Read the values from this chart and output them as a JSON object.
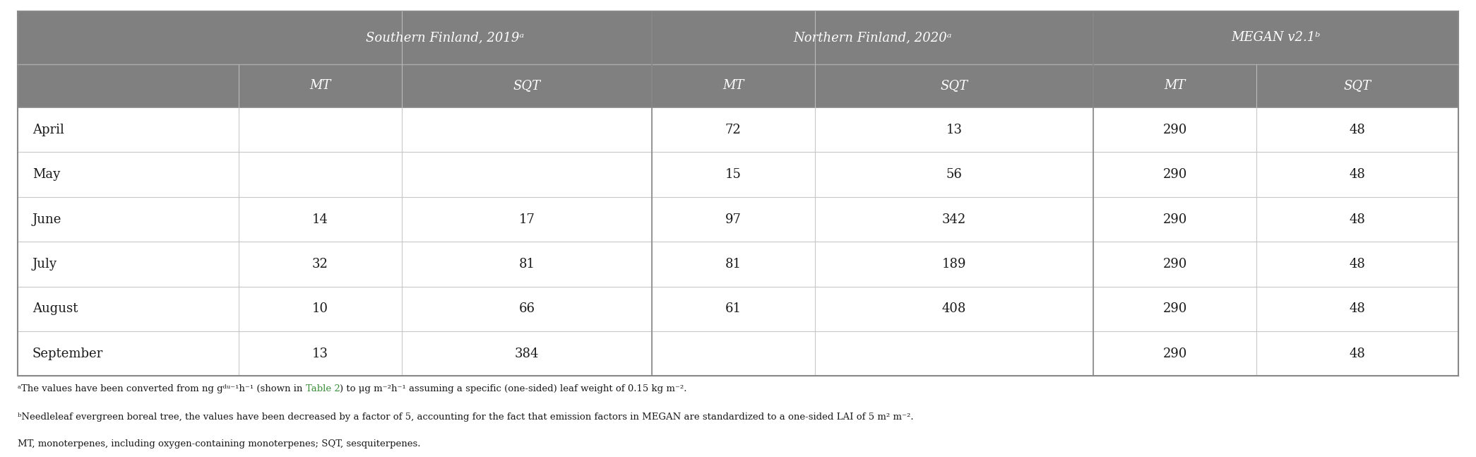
{
  "col_headers_level1": [
    "",
    "Southern Finland, 2019ᵃ",
    "Northern Finland, 2020ᵃ",
    "MEGAN v2.1ᵇ"
  ],
  "col_headers_level2": [
    "",
    "MT",
    "SQT",
    "MT",
    "SQT",
    "MT",
    "SQT"
  ],
  "rows": [
    [
      "April",
      "",
      "",
      "72",
      "13",
      "290",
      "48"
    ],
    [
      "May",
      "",
      "",
      "15",
      "56",
      "290",
      "48"
    ],
    [
      "June",
      "14",
      "17",
      "97",
      "342",
      "290",
      "48"
    ],
    [
      "July",
      "32",
      "81",
      "81",
      "189",
      "290",
      "48"
    ],
    [
      "August",
      "10",
      "66",
      "61",
      "408",
      "290",
      "48"
    ],
    [
      "September",
      "13",
      "384",
      "",
      "",
      "290",
      "48"
    ]
  ],
  "header_bg": "#808080",
  "header_text_color": "#ffffff",
  "row_text_color": "#1a1a1a",
  "footnote_text_color": "#1a1a1a",
  "table_link_color": "#3a8f3a",
  "footnote_line1_before": "ᵃThe values have been converted from ng gᵈᵘ⁻¹h⁻¹ (shown in ",
  "footnote_line1_link": "Table 2",
  "footnote_line1_after": ") to μg m⁻²h⁻¹ assuming a specific (one-sided) leaf weight of 0.15 kg m⁻².",
  "footnote_line2": "ᵇNeedleleaf evergreen boreal tree, the values have been decreased by a factor of 5, accounting for the fact that emission factors in MEGAN are standardized to a one-sided LAI of 5 m² m⁻².",
  "footnote_line3": "MT, monoterpenes, including oxygen-containing monoterpenes; SQT, sesquiterpenes.",
  "figsize": [
    20.9,
    6.47
  ],
  "dpi": 100
}
